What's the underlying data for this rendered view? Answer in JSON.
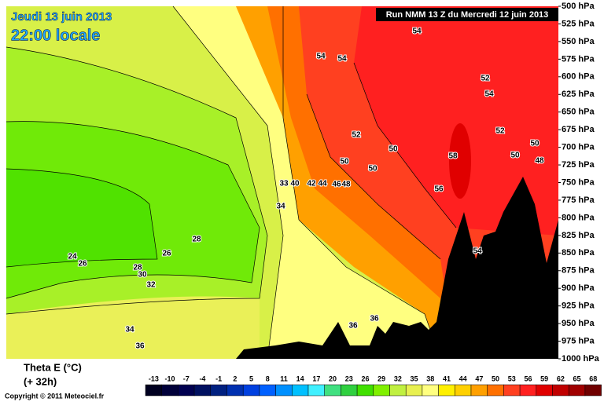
{
  "chart_data": {
    "type": "cross-section",
    "date": "Jeudi 13 juin 2013",
    "time": "22:00 locale",
    "run": "Run NMM 13 Z du Mercredi 12 juin 2013",
    "title": "Theta E (°C)",
    "subtitle": "(+ 32h)",
    "copyright": "Copyright © 2011 Meteociel.fr",
    "ylim": [
      500,
      1000
    ],
    "yticks": [
      {
        "value": 500,
        "label": "500 hPa"
      },
      {
        "value": 525,
        "label": "525 hPa"
      },
      {
        "value": 550,
        "label": "550 hPa"
      },
      {
        "value": 575,
        "label": "575 hPa"
      },
      {
        "value": 600,
        "label": "600 hPa"
      },
      {
        "value": 625,
        "label": "625 hPa"
      },
      {
        "value": 650,
        "label": "650 hPa"
      },
      {
        "value": 675,
        "label": "675 hPa"
      },
      {
        "value": 700,
        "label": "700 hPa"
      },
      {
        "value": 725,
        "label": "725 hPa"
      },
      {
        "value": 750,
        "label": "750 hPa"
      },
      {
        "value": 775,
        "label": "775 hPa"
      },
      {
        "value": 800,
        "label": "800 hPa"
      },
      {
        "value": 825,
        "label": "825 hPa"
      },
      {
        "value": 850,
        "label": "850 hPa"
      },
      {
        "value": 875,
        "label": "875 hPa"
      },
      {
        "value": 900,
        "label": "900 hPa"
      },
      {
        "value": 925,
        "label": "925 hPa"
      },
      {
        "value": 950,
        "label": "950 hPa"
      },
      {
        "value": 975,
        "label": "975 hPa"
      },
      {
        "value": 1000,
        "label": "1000 hPa"
      }
    ],
    "contour_labels": [
      54,
      54,
      54,
      52,
      54,
      52,
      50,
      50,
      50,
      52,
      50,
      50,
      48,
      58,
      56,
      54,
      33,
      40,
      42,
      44,
      46,
      48,
      34,
      28,
      26,
      24,
      26,
      28,
      30,
      32,
      34,
      36,
      36,
      36
    ],
    "colorbar": {
      "values": [
        -13,
        -10,
        -7,
        -4,
        -1,
        2,
        5,
        8,
        11,
        14,
        17,
        20,
        23,
        26,
        29,
        32,
        35,
        38,
        41,
        44,
        47,
        50,
        53,
        56,
        59,
        62,
        65,
        68
      ],
      "colors": [
        "#000020",
        "#00003a",
        "#000050",
        "#001060",
        "#002080",
        "#0030b0",
        "#0040e0",
        "#0060ff",
        "#0090ff",
        "#00c0ff",
        "#40f0ff",
        "#40e080",
        "#30d040",
        "#40e000",
        "#80f000",
        "#c0f040",
        "#e8f050",
        "#ffff80",
        "#fff000",
        "#ffd000",
        "#ffa000",
        "#ff7000",
        "#ff4020",
        "#ff2020",
        "#e00000",
        "#c00000",
        "#a00000",
        "#700000"
      ]
    }
  }
}
